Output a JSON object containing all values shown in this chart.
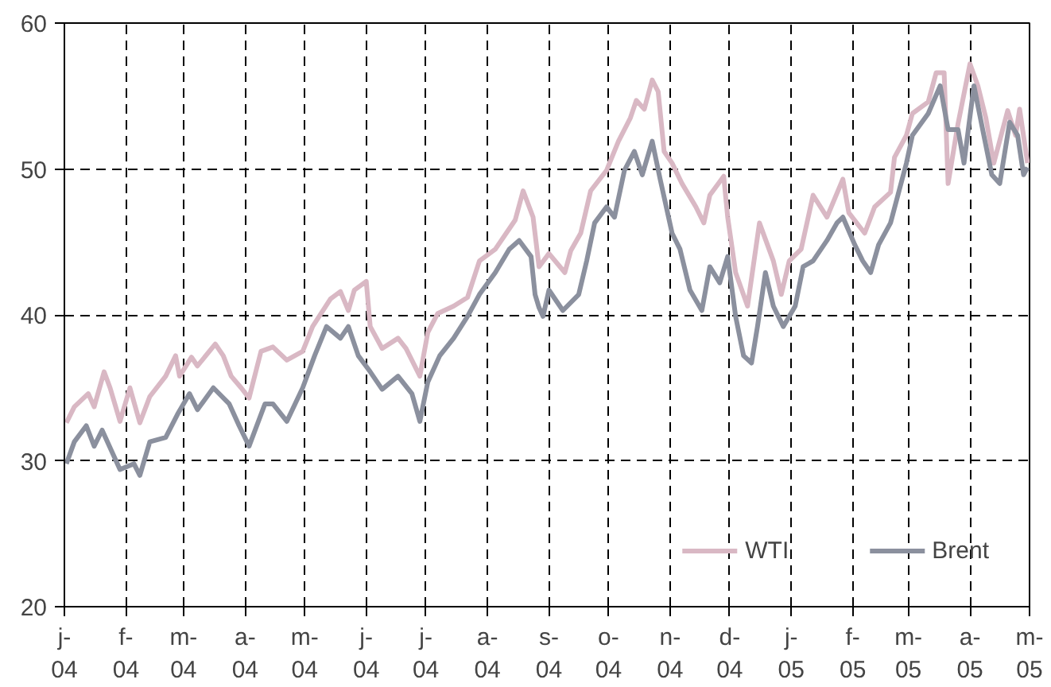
{
  "chart_data": {
    "type": "line",
    "xlim": [
      "2004-01-01",
      "2005-05-01"
    ],
    "xticks": [
      {
        "value": "2004-01-01",
        "label": "j-\n04"
      },
      {
        "value": "2004-02-01",
        "label": "f-\n04"
      },
      {
        "value": "2004-03-01",
        "label": "m-\n04"
      },
      {
        "value": "2004-04-01",
        "label": "a-\n04"
      },
      {
        "value": "2004-05-01",
        "label": "m-\n04"
      },
      {
        "value": "2004-06-01",
        "label": "j-\n04"
      },
      {
        "value": "2004-07-01",
        "label": "j-\n04"
      },
      {
        "value": "2004-08-01",
        "label": "a-\n04"
      },
      {
        "value": "2004-09-01",
        "label": "s-\n04"
      },
      {
        "value": "2004-10-01",
        "label": "o-\n04"
      },
      {
        "value": "2004-11-01",
        "label": "n-\n04"
      },
      {
        "value": "2004-12-01",
        "label": "d-\n04"
      },
      {
        "value": "2005-01-01",
        "label": "j-\n05"
      },
      {
        "value": "2005-02-01",
        "label": "f-\n05"
      },
      {
        "value": "2005-03-01",
        "label": "m-\n05"
      },
      {
        "value": "2005-04-01",
        "label": "a-\n05"
      },
      {
        "value": "2005-05-01",
        "label": "m-\n05"
      }
    ],
    "ylim": [
      20,
      60
    ],
    "yticks": [
      20,
      30,
      40,
      50,
      60
    ],
    "grid": true,
    "legend": "bottom right",
    "line_style": "solid",
    "marker": "none",
    "series": [
      {
        "name": "WTI",
        "color": "#d9b8c4",
        "x": [
          "2004-01-02",
          "2004-01-06",
          "2004-01-13",
          "2004-01-16",
          "2004-01-21",
          "2004-01-24",
          "2004-01-29",
          "2004-02-03",
          "2004-02-08",
          "2004-02-13",
          "2004-02-21",
          "2004-02-26",
          "2004-02-28",
          "2004-03-05",
          "2004-03-08",
          "2004-03-17",
          "2004-03-21",
          "2004-03-25",
          "2004-03-30",
          "2004-04-03",
          "2004-04-09",
          "2004-04-15",
          "2004-04-22",
          "2004-04-30",
          "2004-05-05",
          "2004-05-14",
          "2004-05-19",
          "2004-05-23",
          "2004-05-26",
          "2004-06-01",
          "2004-06-03",
          "2004-06-09",
          "2004-06-17",
          "2004-06-21",
          "2004-06-28",
          "2004-07-02",
          "2004-07-07",
          "2004-07-15",
          "2004-07-22",
          "2004-07-28",
          "2004-08-05",
          "2004-08-12",
          "2004-08-15",
          "2004-08-19",
          "2004-08-24",
          "2004-08-27",
          "2004-09-01",
          "2004-09-09",
          "2004-09-12",
          "2004-09-17",
          "2004-09-22",
          "2004-09-30",
          "2004-10-06",
          "2004-10-12",
          "2004-10-15",
          "2004-10-19",
          "2004-10-23",
          "2004-10-26",
          "2004-10-29",
          "2004-11-02",
          "2004-11-07",
          "2004-11-14",
          "2004-11-18",
          "2004-11-21",
          "2004-11-28",
          "2004-11-30",
          "2004-12-04",
          "2004-12-10",
          "2004-12-16",
          "2004-12-23",
          "2004-12-27",
          "2004-12-31",
          "2005-01-06",
          "2005-01-12",
          "2005-01-19",
          "2005-01-27",
          "2005-01-30",
          "2005-02-07",
          "2005-02-12",
          "2005-02-20",
          "2005-02-22",
          "2005-02-28",
          "2005-03-03",
          "2005-03-11",
          "2005-03-15",
          "2005-03-19",
          "2005-03-21",
          "2005-03-26",
          "2005-04-01",
          "2005-04-05",
          "2005-04-09",
          "2005-04-13",
          "2005-04-20",
          "2005-04-24",
          "2005-04-26",
          "2005-04-30"
        ],
        "values": [
          32.6,
          33.7,
          34.6,
          33.7,
          36.1,
          35.0,
          32.7,
          35.0,
          32.6,
          34.4,
          35.8,
          37.2,
          35.8,
          37.1,
          36.5,
          38.0,
          37.2,
          35.8,
          35.0,
          34.3,
          37.5,
          37.8,
          36.9,
          37.5,
          39.2,
          41.1,
          41.6,
          40.3,
          41.7,
          42.3,
          39.2,
          37.7,
          38.4,
          37.7,
          35.8,
          38.8,
          40.1,
          40.6,
          41.2,
          43.7,
          44.5,
          45.9,
          46.5,
          48.5,
          46.7,
          43.3,
          44.2,
          42.9,
          44.4,
          45.6,
          48.5,
          49.9,
          51.9,
          53.5,
          54.7,
          54.1,
          56.1,
          55.3,
          51.2,
          50.4,
          49.0,
          47.4,
          46.3,
          48.2,
          49.5,
          46.7,
          42.9,
          40.6,
          46.3,
          43.7,
          41.4,
          43.7,
          44.5,
          48.2,
          46.7,
          49.3,
          47.0,
          45.6,
          47.4,
          48.4,
          50.8,
          52.3,
          53.8,
          54.6,
          56.6,
          56.6,
          49.0,
          53.1,
          57.2,
          55.7,
          53.5,
          50.4,
          54.0,
          52.3,
          54.1,
          50.4
        ]
      },
      {
        "name": "Brent",
        "color": "#8b909e",
        "x": [
          "2004-01-02",
          "2004-01-06",
          "2004-01-12",
          "2004-01-16",
          "2004-01-20",
          "2004-01-29",
          "2004-02-05",
          "2004-02-08",
          "2004-02-13",
          "2004-02-21",
          "2004-02-27",
          "2004-03-04",
          "2004-03-08",
          "2004-03-16",
          "2004-03-24",
          "2004-03-29",
          "2004-04-03",
          "2004-04-11",
          "2004-04-15",
          "2004-04-22",
          "2004-04-30",
          "2004-05-06",
          "2004-05-12",
          "2004-05-19",
          "2004-05-23",
          "2004-05-28",
          "2004-06-03",
          "2004-06-09",
          "2004-06-17",
          "2004-06-24",
          "2004-06-28",
          "2004-07-02",
          "2004-07-08",
          "2004-07-15",
          "2004-07-22",
          "2004-07-28",
          "2004-08-05",
          "2004-08-12",
          "2004-08-17",
          "2004-08-23",
          "2004-08-25",
          "2004-08-27",
          "2004-08-29",
          "2004-09-01",
          "2004-09-08",
          "2004-09-16",
          "2004-09-20",
          "2004-09-24",
          "2004-09-30",
          "2004-10-04",
          "2004-10-09",
          "2004-10-14",
          "2004-10-18",
          "2004-10-23",
          "2004-10-27",
          "2004-11-02",
          "2004-11-06",
          "2004-11-11",
          "2004-11-17",
          "2004-11-21",
          "2004-11-26",
          "2004-11-30",
          "2004-12-04",
          "2004-12-08",
          "2004-12-12",
          "2004-12-15",
          "2004-12-19",
          "2004-12-23",
          "2004-12-28",
          "2005-01-03",
          "2005-01-07",
          "2005-01-12",
          "2005-01-19",
          "2005-01-24",
          "2005-01-27",
          "2005-02-02",
          "2005-02-06",
          "2005-02-10",
          "2005-02-14",
          "2005-02-20",
          "2005-02-28",
          "2005-03-03",
          "2005-03-11",
          "2005-03-17",
          "2005-03-21",
          "2005-03-26",
          "2005-03-29",
          "2005-04-03",
          "2005-04-08",
          "2005-04-12",
          "2005-04-16",
          "2005-04-21",
          "2005-04-25",
          "2005-04-28",
          "2005-04-30"
        ],
        "values": [
          29.8,
          31.3,
          32.4,
          31.0,
          32.1,
          29.4,
          29.8,
          29.0,
          31.3,
          31.6,
          33.2,
          34.6,
          33.5,
          35.0,
          33.9,
          32.4,
          31.0,
          33.9,
          33.9,
          32.7,
          35.0,
          37.2,
          39.2,
          38.4,
          39.2,
          37.2,
          36.1,
          34.9,
          35.8,
          34.6,
          32.7,
          35.4,
          37.2,
          38.4,
          39.9,
          41.4,
          42.9,
          44.5,
          45.1,
          44.0,
          41.4,
          40.5,
          39.9,
          41.7,
          40.3,
          41.4,
          43.7,
          46.3,
          47.4,
          46.7,
          49.9,
          51.2,
          49.6,
          51.9,
          49.3,
          45.6,
          44.5,
          41.7,
          40.3,
          43.3,
          42.2,
          44.0,
          39.9,
          37.2,
          36.7,
          39.2,
          42.9,
          40.6,
          39.2,
          40.6,
          43.3,
          43.7,
          45.1,
          46.3,
          46.7,
          44.8,
          43.7,
          42.9,
          44.8,
          46.3,
          50.4,
          52.3,
          53.8,
          55.7,
          52.7,
          52.7,
          50.4,
          55.7,
          52.3,
          49.6,
          49.0,
          53.2,
          52.3,
          49.6,
          50.1
        ]
      }
    ]
  }
}
